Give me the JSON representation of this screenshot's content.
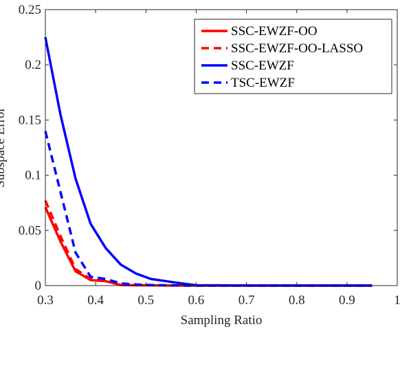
{
  "chart_data": {
    "type": "line",
    "title": "",
    "xlabel": "Sampling Ratio",
    "ylabel": "Subspace Error",
    "xlim": [
      0.3,
      1
    ],
    "ylim": [
      0,
      0.25
    ],
    "xticks": [
      0.3,
      0.4,
      0.5,
      0.6,
      0.7,
      0.8,
      0.9,
      1
    ],
    "xtick_labels": [
      "0.3",
      "0.4",
      "0.5",
      "0.6",
      "0.7",
      "0.8",
      "0.9",
      "1"
    ],
    "yticks": [
      0,
      0.05,
      0.1,
      0.15,
      0.2,
      0.25
    ],
    "ytick_labels": [
      "0",
      "0.05",
      "0.1",
      "0.15",
      "0.2",
      "0.25"
    ],
    "grid": false,
    "legend_position": "top-right",
    "x": [
      0.3,
      0.33,
      0.36,
      0.39,
      0.42,
      0.45,
      0.48,
      0.51,
      0.54,
      0.57,
      0.6,
      0.65,
      0.7,
      0.75,
      0.8,
      0.85,
      0.9,
      0.95
    ],
    "series": [
      {
        "name": "SSC-EWZF-OO",
        "color": "#ff0000",
        "dash": "solid",
        "values": [
          0.071,
          0.04,
          0.013,
          0.005,
          0.004,
          0.0005,
          0.0003,
          0.0002,
          0.0001,
          0.0001,
          0,
          0,
          0,
          0,
          0,
          0,
          0,
          0
        ]
      },
      {
        "name": "SSC-EWZF-OO-LASSO",
        "color": "#ff0000",
        "dash": "dashed",
        "values": [
          0.077,
          0.045,
          0.015,
          0.006,
          0.004,
          0.0008,
          0.0004,
          0.0003,
          0.0002,
          0.0001,
          0,
          0,
          0,
          0,
          0,
          0,
          0,
          0
        ]
      },
      {
        "name": "SSC-EWZF",
        "color": "#0000ff",
        "dash": "solid",
        "values": [
          0.225,
          0.155,
          0.097,
          0.056,
          0.034,
          0.019,
          0.011,
          0.006,
          0.004,
          0.002,
          0.0003,
          0.0002,
          0.0001,
          0.0001,
          0.0001,
          0.0001,
          0.0001,
          0
        ]
      },
      {
        "name": "TSC-EWZF",
        "color": "#0000ff",
        "dash": "dashed",
        "values": [
          0.14,
          0.085,
          0.03,
          0.008,
          0.006,
          0.002,
          0.001,
          0.0005,
          0.0003,
          0.0001,
          0,
          0,
          0,
          0,
          0,
          0,
          0,
          0
        ]
      }
    ]
  }
}
